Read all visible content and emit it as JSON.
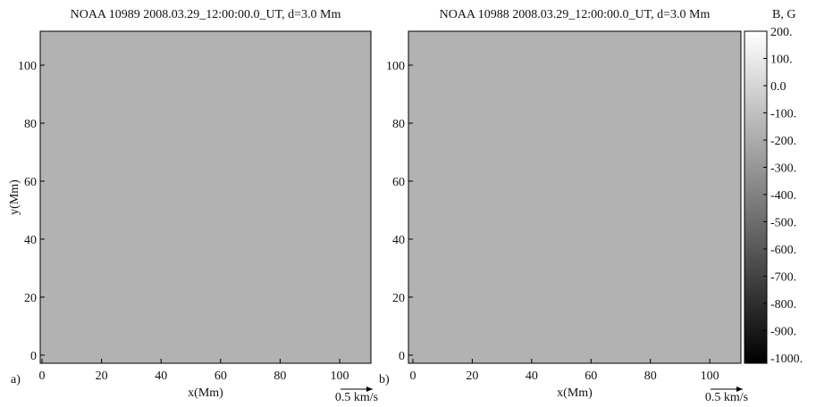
{
  "chart_data": [
    {
      "type": "heatmap",
      "title": "NOAA 10989 2008.03.29_12:00:00.0_UT, d=3.0 Mm",
      "panel_label": "a)",
      "x_label": "x(Mm)",
      "y_label": "y(Mm)",
      "xlim": [
        -0.6,
        110.5
      ],
      "ylim": [
        -2.8,
        111.7
      ],
      "xticks": [
        0,
        20,
        40,
        60,
        80,
        100
      ],
      "yticks": [
        0,
        20,
        40,
        60,
        80,
        100
      ],
      "scale_arrow_label": "0.5 km/s"
    },
    {
      "type": "heatmap",
      "title": "NOAA 10988 2008.03.29_12:00:00.0_UT, d=3.0 Mm",
      "panel_label": "b)",
      "x_label": "x(Mm)",
      "xlim": [
        -1.5,
        110.5
      ],
      "ylim": [
        -2.8,
        111.7
      ],
      "xticks": [
        0,
        20,
        40,
        60,
        80,
        100
      ],
      "yticks": [
        0,
        20,
        40,
        60,
        80,
        100
      ],
      "scale_arrow_label": "0.5 km/s",
      "colorbar": {
        "title": "B, G",
        "lim": [
          -1020,
          200
        ],
        "ticks": [
          {
            "value": 200,
            "label": "200."
          },
          {
            "value": 100,
            "label": "100."
          },
          {
            "value": 0,
            "label": "0.0"
          },
          {
            "value": -100,
            "label": "-100."
          },
          {
            "value": -200,
            "label": "-200."
          },
          {
            "value": -300,
            "label": "-300."
          },
          {
            "value": -400,
            "label": "-400."
          },
          {
            "value": -500,
            "label": "-500."
          },
          {
            "value": -600,
            "label": "-600."
          },
          {
            "value": -700,
            "label": "-700."
          },
          {
            "value": -800,
            "label": "-800."
          },
          {
            "value": -900,
            "label": "-900."
          },
          {
            "value": -1000,
            "label": "-1000."
          }
        ]
      }
    }
  ]
}
